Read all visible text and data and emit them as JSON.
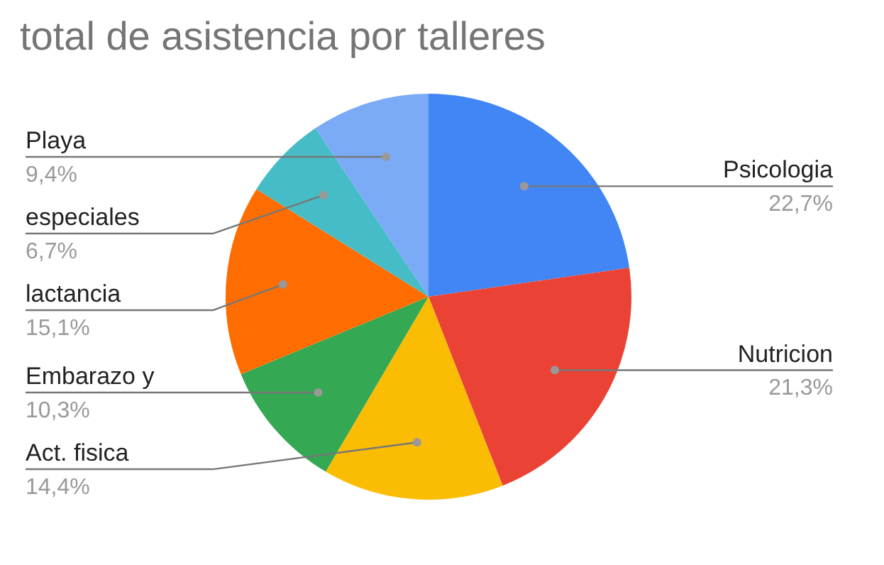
{
  "chart_data": {
    "type": "pie",
    "title": "total de asistencia por talleres",
    "categories": [
      "Psicologia",
      "Nutricion",
      "Act. fisica",
      "Embarazo y",
      "lactancia",
      "especiales",
      "Playa"
    ],
    "values": [
      22.7,
      21.3,
      14.4,
      10.3,
      15.1,
      6.7,
      9.4
    ],
    "value_labels": [
      "22,7%",
      "21,3%",
      "14,4%",
      "10,3%",
      "15,1%",
      "6,7%",
      "9,4%"
    ],
    "colors": [
      "#4285f4",
      "#ea4335",
      "#fbbc04",
      "#34a853",
      "#ff6d01",
      "#46bdc6",
      "#7baaf7"
    ],
    "legend": false
  }
}
